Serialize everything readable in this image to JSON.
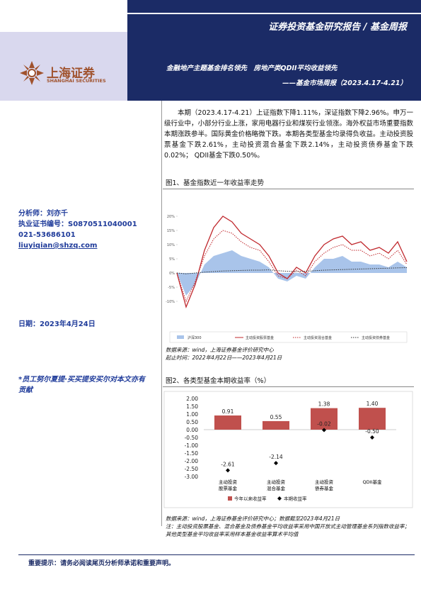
{
  "header": {
    "report_type": "证券投资基金研究报告 / 基金周报",
    "logo_cn": "上海证券",
    "logo_en": "SHANGHAI SECURITIES",
    "headline": "金融地产主题基金排名领先　房地产类QDII平均收益领先",
    "subheadline": "——基金市场周报（2023.4.17-4.21）"
  },
  "sidebar": {
    "analyst": "分析师：刘亦千",
    "license": "执业证书编号：S0870511040001",
    "phone": "021-53686101",
    "email": "liuyiqian@shzq.com",
    "date": "日期：2023年4月24日",
    "contributor": "*员工努尔夏提·买买提安买尔对本文亦有贡献"
  },
  "summary": "本期（2023.4.17-4.21）上证指数下降1.11%，深证指数下降2.96%。申万一级行业中，小部分行业上涨，家用电器行业和煤炭行业领涨。海外权益市场重要指数本期涨跌参半。国际黄金价格略微下跌。本期各类型基金均录得负收益。主动投资股票基金下跌2.61%，主动投资混合基金下跌2.14%，主动投资债券基金下跌0.02%； QDII基金下跌0.50%。",
  "figure1": {
    "caption": "图1、基金指数近一年收益率走势",
    "source": "数据来源：wind，上海证券基金评价研究中心",
    "period": "起止时间：2022年4月22日——2023年4月21日"
  },
  "figure2": {
    "caption": "图2、各类型基金本期收益率（%）",
    "source": "数据来源：wind，上海证券基金评价研究中心；数据截至2023年4月21日",
    "note": "注：主动投资股票基金、混合基金及债券基金平均收益率采用中国开放式主动管理基金系列指数收益率；其他类型基金平均收益率采用样本基金收益率算术平均值"
  },
  "footer": "重要提示：请务必阅读尾页分析师承诺和重要声明。",
  "chart_data": [
    {
      "type": "line",
      "categories": [
        null,
        null,
        null,
        null,
        null,
        null,
        null,
        null,
        null,
        null,
        null,
        null,
        null,
        null,
        null,
        null,
        null,
        null,
        null,
        null,
        null,
        null,
        null,
        null,
        null,
        null
      ],
      "ylim": [
        -15,
        22
      ],
      "yticks": [
        {
          "value": -10,
          "label": "-10%"
        },
        {
          "value": -5,
          "label": "-5%"
        },
        {
          "value": 0,
          "label": "0%"
        },
        {
          "value": 5,
          "label": "5%"
        },
        {
          "value": 10,
          "label": "10%"
        },
        {
          "value": 15,
          "label": "15%"
        },
        {
          "value": 20,
          "label": "20%"
        }
      ],
      "legend": "bottom",
      "series": [
        {
          "name": "沪深300",
          "color": "#a9c4ea",
          "area": true,
          "dash": "solid",
          "values": [
            0,
            -8,
            -4,
            3,
            6,
            7,
            8,
            6,
            5,
            4,
            2,
            -2,
            -3,
            -1,
            -2,
            2,
            5,
            5,
            6,
            4,
            4,
            3,
            3,
            2,
            4,
            2
          ]
        },
        {
          "name": "主动投资股票基金",
          "color": "#c0282d",
          "area": false,
          "dash": "solid",
          "values": [
            0,
            -12,
            -4,
            8,
            16,
            20,
            18,
            14,
            12,
            10,
            6,
            0,
            -2,
            2,
            0,
            6,
            10,
            12,
            13,
            10,
            11,
            8,
            9,
            7,
            11,
            4
          ]
        },
        {
          "name": "主动投资混合基金",
          "color": "#c0282d",
          "area": false,
          "dash": "dotted",
          "values": [
            0,
            -10,
            -3,
            6,
            12,
            15,
            14,
            11,
            9,
            8,
            4,
            -1,
            -2,
            1,
            -1,
            4,
            7,
            9,
            10,
            8,
            8,
            6,
            7,
            5,
            8,
            3
          ]
        },
        {
          "name": "主动投资债券基金",
          "color": "#333333",
          "area": false,
          "dash": "dotted",
          "values": [
            0,
            -0.3,
            0,
            0.3,
            0.5,
            0.7,
            0.8,
            0.9,
            1,
            1,
            1.1,
            0.8,
            0.6,
            0.5,
            0.6,
            0.8,
            1,
            1.1,
            1.2,
            1.3,
            1.4,
            1.5,
            1.6,
            1.7,
            1.8,
            1.9
          ]
        }
      ]
    },
    {
      "type": "bar",
      "categories": [
        "主动投资\n股票基金",
        "主动投资\n混合基金",
        "主动投资\n债券基金",
        "QDII基金"
      ],
      "ylim": [
        -3,
        2
      ],
      "yticks": [
        {
          "value": -3,
          "label": "-3.00"
        },
        {
          "value": -2.5,
          "label": "-2.50"
        },
        {
          "value": -2,
          "label": "-2.00"
        },
        {
          "value": -1.5,
          "label": "-1.50"
        },
        {
          "value": -1,
          "label": "-1.00"
        },
        {
          "value": -0.5,
          "label": "-0.50"
        },
        {
          "value": 0,
          "label": "0.00"
        },
        {
          "value": 0.5,
          "label": "0.50"
        },
        {
          "value": 1,
          "label": "1.00"
        },
        {
          "value": 1.5,
          "label": "1.50"
        },
        {
          "value": 2,
          "label": "2.00"
        }
      ],
      "legend": "bottom",
      "series": [
        {
          "name": "今年以来收益率",
          "color": "#c0504d",
          "type": "bar",
          "values": [
            0.91,
            0.55,
            1.38,
            1.4
          ],
          "value_labels": [
            "0.91",
            "0.55",
            "1.38",
            "1.40"
          ]
        },
        {
          "name": "本期收益率",
          "color": "#000000",
          "type": "scatter",
          "values": [
            -2.61,
            -2.14,
            -0.02,
            -0.5
          ],
          "value_labels": [
            "-2.61",
            "-2.14",
            "-0.02",
            "-0.50"
          ]
        }
      ]
    }
  ]
}
